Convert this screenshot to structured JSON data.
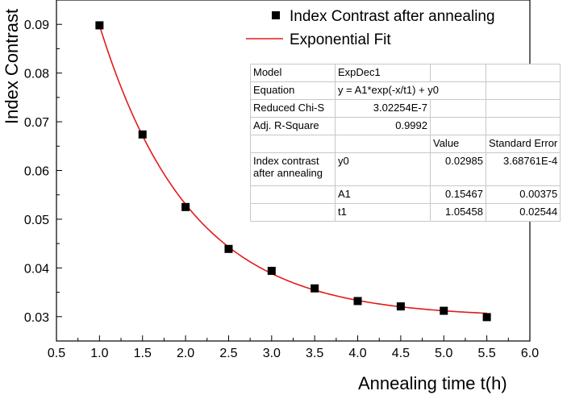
{
  "chart_data": {
    "type": "scatter",
    "xlabel": "Annealing time t(h)",
    "ylabel": "Index Contrast",
    "xlim": [
      0.5,
      6.0
    ],
    "ylim": [
      0.025,
      0.095
    ],
    "xticks": [
      "0.5",
      "1.0",
      "1.5",
      "2.0",
      "2.5",
      "3.0",
      "3.5",
      "4.0",
      "4.5",
      "5.0",
      "5.5",
      "6.0"
    ],
    "yticks": [
      "0.03",
      "0.04",
      "0.05",
      "0.06",
      "0.07",
      "0.08",
      "0.09"
    ],
    "series": [
      {
        "name": "Index Contrast after annealing",
        "marker": "square",
        "color": "#000000",
        "x": [
          1.0,
          1.5,
          2.0,
          2.5,
          3.0,
          3.5,
          4.0,
          4.5,
          5.0,
          5.5
        ],
        "y": [
          0.0898,
          0.0674,
          0.0525,
          0.0439,
          0.0394,
          0.0358,
          0.0332,
          0.0321,
          0.0312,
          0.0299
        ]
      },
      {
        "name": "Exponential Fit",
        "line": true,
        "color": "#e31a1c",
        "model": {
          "y0": 0.02985,
          "A1": 0.15467,
          "t1": 1.05458,
          "x_start": 1.0,
          "x_end": 5.5
        }
      }
    ],
    "legend_position": "top-right",
    "fit_table": {
      "model_label": "Model",
      "model_value": "ExpDec1",
      "equation_label": "Equation",
      "equation_value": "y = A1*exp(-x/t1) + y0",
      "chi_label": "Reduced Chi-S",
      "chi_value": "3.02254E-7",
      "r2_label": "Adj. R-Square",
      "r2_value": "0.9992",
      "col_value": "Value",
      "col_error": "Standard Error",
      "group_label": "Index contrast after annealing",
      "params": [
        {
          "name": "y0",
          "value": "0.02985",
          "error": "3.68761E-4"
        },
        {
          "name": "A1",
          "value": "0.15467",
          "error": "0.00375"
        },
        {
          "name": "t1",
          "value": "1.05458",
          "error": "0.02544"
        }
      ]
    }
  }
}
